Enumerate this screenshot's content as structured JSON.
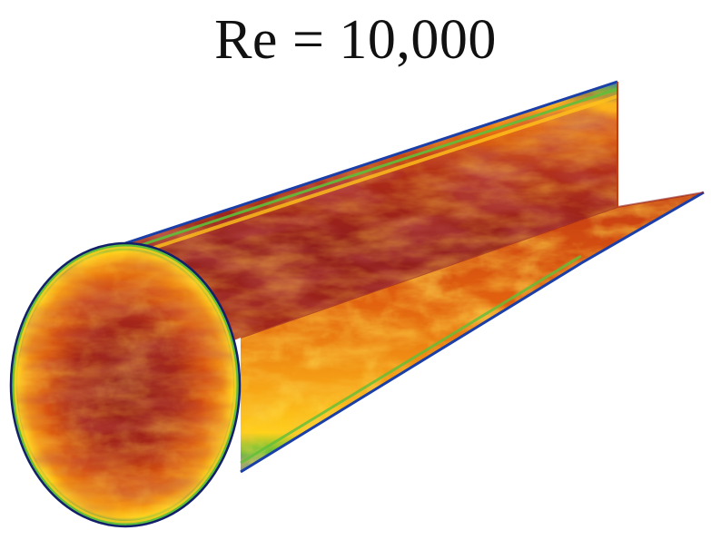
{
  "title": "Re = 10,000",
  "colors": {
    "core": "#8f1d1d",
    "mid": "#c33a12",
    "warm": "#f07a10",
    "hot": "#ffc21a",
    "edge_green": "#5fbf3a",
    "edge_blue": "#1d62c8",
    "edge_navy": "#12206b"
  }
}
